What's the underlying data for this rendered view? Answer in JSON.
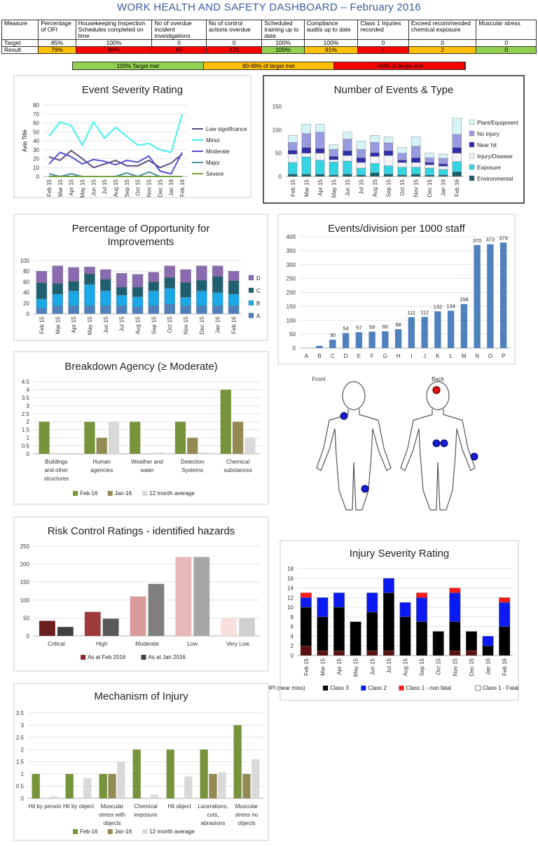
{
  "title": "WORK HEALTH AND SAFETY DASHBOARD – February 2016",
  "table": {
    "header": [
      "Measure",
      "Percentage of OFI",
      "Housekeeping Inspection Schedules completed on time",
      "No of overdue incident investigations",
      "No of control actions overdue",
      "Scheduled training up to date",
      "Compliance audits up to date",
      "Class 1 Injuries recorded",
      "Exceed recommended chemical exposure",
      "Muscular stress"
    ],
    "rows": [
      [
        "Target",
        "85%",
        "100%",
        "0",
        "0",
        "100%",
        "100%",
        "0",
        "0",
        "0"
      ],
      [
        "Result",
        "79%",
        "88%",
        "83",
        "125",
        "100%",
        "91%",
        "1",
        "2",
        "0"
      ]
    ],
    "result_colors": [
      null,
      "#ffc000",
      "#ff0000",
      "#ff0000",
      "#ff0000",
      "#92d050",
      "#ffc000",
      "#ff0000",
      "#ffc000",
      "#92d050"
    ]
  },
  "target_legend": [
    {
      "label": "100% Target met",
      "color": "#92d050"
    },
    {
      "label": "90-99% of target met",
      "color": "#ffc000"
    },
    {
      "label": ">90% of target met",
      "color": "#ff0000"
    }
  ],
  "body_diagram": {
    "front": "Front",
    "back": "Back"
  },
  "chart_data": [
    {
      "type": "line",
      "title": "Event Severity Rating",
      "y_label": "Axis Title",
      "legend": "right",
      "grid": true,
      "categories": [
        "Feb 15",
        "Mar 15",
        "Apr 15",
        "May 15",
        "Jun 15",
        "Jul 15",
        "Aug 15",
        "Sep 15",
        "Oct 15",
        "Nov 15",
        "Dec 15",
        "Jan 16",
        "Feb 16"
      ],
      "ylim": [
        0,
        80
      ],
      "yticks": [
        0,
        10,
        20,
        30,
        40,
        50,
        60,
        70,
        80
      ],
      "series": [
        {
          "name": "Low significance",
          "color": "#5e4b7f",
          "values": [
            22,
            18,
            29,
            20,
            10,
            14,
            18,
            12,
            12,
            18,
            10,
            15,
            25
          ]
        },
        {
          "name": "Minor",
          "color": "#40f0f0",
          "values": [
            45,
            61,
            57,
            35,
            61,
            43,
            55,
            45,
            35,
            37,
            30,
            27,
            70
          ]
        },
        {
          "name": "Moderate",
          "color": "#5650d0",
          "values": [
            14,
            27,
            22,
            14,
            19,
            17,
            13,
            18,
            16,
            23,
            6,
            3,
            27
          ]
        },
        {
          "name": "Major",
          "color": "#4a8fa0",
          "values": [
            3,
            0,
            3,
            0,
            0,
            0,
            0,
            4,
            0,
            5,
            0,
            0,
            0
          ]
        },
        {
          "name": "Severe",
          "color": "#77a040",
          "values": [
            0,
            0,
            0,
            0,
            0,
            0,
            0,
            0,
            0,
            0,
            0,
            0,
            0
          ]
        }
      ]
    },
    {
      "type": "stacked_bar",
      "title": "Number of Events & Type",
      "legend": "right",
      "grid": false,
      "categories": [
        "Feb 15",
        "Mar 15",
        "Apr 15",
        "May 15",
        "Jun 15",
        "Jul 15",
        "Aug 15",
        "Sep 15",
        "Oct 15",
        "Nov 15",
        "Dec 15",
        "Jan 16",
        "Feb 16"
      ],
      "ylim": [
        0,
        150
      ],
      "yticks": [
        0,
        50,
        100,
        150
      ],
      "series": [
        {
          "name": "Environmental",
          "color": "#17606b",
          "values": [
            5,
            5,
            5,
            3,
            5,
            3,
            8,
            5,
            3,
            5,
            3,
            3,
            10
          ]
        },
        {
          "name": "Exposure",
          "color": "#35d4e0",
          "values": [
            25,
            37,
            30,
            28,
            28,
            15,
            20,
            18,
            17,
            15,
            15,
            12,
            22
          ]
        },
        {
          "name": "Injury/Disease",
          "color": "#f2f2f8",
          "values": [
            18,
            8,
            15,
            5,
            12,
            12,
            15,
            22,
            10,
            10,
            7,
            7,
            18
          ]
        },
        {
          "name": "Near hit",
          "color": "#2e2ea8",
          "values": [
            8,
            12,
            10,
            7,
            10,
            10,
            8,
            10,
            5,
            10,
            5,
            5,
            12
          ]
        },
        {
          "name": "No injury",
          "color": "#9a9ae0",
          "values": [
            17,
            30,
            35,
            15,
            25,
            18,
            22,
            17,
            15,
            25,
            10,
            12,
            28
          ]
        },
        {
          "name": "Plant/Equipment",
          "color": "#d4f4f8",
          "values": [
            15,
            20,
            17,
            10,
            15,
            18,
            15,
            13,
            12,
            20,
            10,
            9,
            35
          ]
        }
      ]
    },
    {
      "type": "stacked_bar",
      "title": "Percentage of Opportunity for Improvements",
      "legend": "right",
      "grid": true,
      "categories": [
        "Feb 15",
        "Mar 15",
        "Apr 15",
        "May 15",
        "Jun 15",
        "Jul 15",
        "Aug 15",
        "Sep 15",
        "Oct 15",
        "Nov 15",
        "Dec 15",
        "Jan 16",
        "Feb 16"
      ],
      "ylim": [
        0,
        100
      ],
      "yticks": [
        0,
        20,
        40,
        60,
        80,
        100
      ],
      "series": [
        {
          "name": "A",
          "color": "#4f81bd",
          "values": [
            10,
            15,
            15,
            15,
            15,
            15,
            12,
            15,
            18,
            15,
            15,
            15,
            15
          ]
        },
        {
          "name": "B",
          "color": "#1aa8e8",
          "values": [
            18,
            22,
            28,
            40,
            28,
            20,
            20,
            28,
            30,
            16,
            28,
            25,
            22
          ]
        },
        {
          "name": "C",
          "color": "#1f6070",
          "values": [
            30,
            20,
            18,
            20,
            22,
            15,
            18,
            17,
            20,
            28,
            20,
            30,
            25
          ]
        },
        {
          "name": "D",
          "color": "#8a6ab0",
          "values": [
            22,
            33,
            26,
            13,
            18,
            26,
            24,
            18,
            22,
            24,
            27,
            20,
            18
          ]
        }
      ]
    },
    {
      "type": "bar",
      "title": "Events/division per 1000 staff",
      "grid": true,
      "color": "#4f81bd",
      "categories": [
        "A",
        "B",
        "C",
        "D",
        "E",
        "F",
        "G",
        "H",
        "I",
        "J",
        "K",
        "L",
        "M",
        "N",
        "O",
        "P"
      ],
      "values": [
        0,
        8,
        30,
        54,
        57,
        59,
        60,
        68,
        111,
        112,
        132,
        134,
        158,
        370,
        373,
        379
      ],
      "value_labels": [
        null,
        null,
        "30",
        "54",
        "57",
        "59",
        "60",
        "68",
        "111",
        "112",
        "132",
        "134",
        "158",
        "370",
        "373",
        "379"
      ],
      "ylim": [
        0,
        400
      ],
      "yticks": [
        0,
        50,
        100,
        150,
        200,
        250,
        300,
        350,
        400
      ]
    },
    {
      "type": "grouped_bar",
      "title": "Breakdown Agency (≥ Moderate)",
      "legend": "bottom",
      "grid": true,
      "categories": [
        "Buildings and other structures",
        "Human agencies",
        "Weather and water",
        "Detection Systems",
        "Chemical substances"
      ],
      "ylim": [
        0,
        4.5
      ],
      "yticks": [
        0,
        0.5,
        1,
        1.5,
        2,
        2.5,
        3,
        3.5,
        4,
        4.5
      ],
      "series": [
        {
          "name": "Feb-16",
          "color": "#77933c",
          "values": [
            2,
            2,
            2,
            2,
            4
          ]
        },
        {
          "name": "Jan-16",
          "color": "#948a54",
          "values": [
            0,
            1,
            0,
            1,
            2
          ]
        },
        {
          "name": "12 month average",
          "color": "#d9d9d9",
          "values": [
            0,
            2,
            0.08,
            0.08,
            1
          ]
        }
      ]
    },
    {
      "type": "grouped_bar",
      "title": "Risk Control Ratings - identified hazards",
      "legend": "bottom",
      "grid": true,
      "categories": [
        "Critical",
        "High",
        "Moderate",
        "Low",
        "Very Low"
      ],
      "ylim": [
        0,
        250
      ],
      "yticks": [
        0,
        50,
        100,
        150,
        200,
        250
      ],
      "series": [
        {
          "name": "As at Feb 2016",
          "color": "#8b2b2b",
          "colors": [
            "#6b2020",
            "#9e3a3a",
            "#d89a9a",
            "#e8b8b8",
            "#f8e0e0"
          ],
          "values": [
            42,
            67,
            110,
            220,
            50
          ]
        },
        {
          "name": "As at Jan 2016",
          "color": "#404040",
          "colors": [
            "#404040",
            "#595959",
            "#7f7f7f",
            "#a6a6a6",
            "#d0d0d0"
          ],
          "values": [
            25,
            48,
            145,
            220,
            50
          ]
        }
      ]
    },
    {
      "type": "stacked_bar",
      "title": "Injury Severity Rating",
      "legend": "bottom",
      "grid": true,
      "categories": [
        "Feb 15",
        "Mar 15",
        "Apr 15",
        "May 15",
        "Jun 15",
        "Jul 15",
        "Aug 15",
        "Sep 15",
        "Oct 15",
        "Nov 15",
        "Dec 15",
        "Jan 16",
        "Feb 16"
      ],
      "ylim": [
        0,
        18
      ],
      "yticks": [
        0,
        2,
        4,
        6,
        8,
        10,
        12,
        14,
        16,
        18
      ],
      "series": [
        {
          "name": "HPI (near miss)",
          "color": "#5a1010",
          "values": [
            2,
            1,
            1,
            0,
            1,
            1,
            0,
            0,
            0,
            1,
            1,
            0,
            0
          ]
        },
        {
          "name": "Class 3",
          "color": "#000000",
          "values": [
            8,
            7,
            9,
            7,
            8,
            12,
            8,
            7,
            5,
            6,
            4,
            2,
            6
          ]
        },
        {
          "name": "Class 2",
          "color": "#0a1af0",
          "values": [
            2,
            4,
            3,
            0,
            4,
            3,
            3,
            5,
            0,
            6,
            0,
            2,
            5
          ]
        },
        {
          "name": "Class 1 - non fatal",
          "color": "#ff1a1a",
          "values": [
            1,
            0,
            0,
            0,
            0,
            0,
            0,
            1,
            0,
            1,
            0,
            0,
            1
          ]
        },
        {
          "name": "Class 1 - Fatal",
          "color": "#ffffff",
          "values": [
            0,
            0,
            0,
            0,
            0,
            0,
            0,
            0,
            0,
            0,
            0,
            0,
            0
          ]
        }
      ]
    },
    {
      "type": "grouped_bar",
      "title": "Mechanism of Injury",
      "legend": "bottom",
      "grid": true,
      "categories": [
        "Hit by person",
        "Hit by object",
        "Muscular stress with objects",
        "Chemical exposure",
        "Hit object",
        "Lacerations, cuts, abrasions",
        "Muscular stress no objects"
      ],
      "ylim": [
        0,
        3.5
      ],
      "yticks": [
        0,
        0.5,
        1,
        1.5,
        2,
        2.5,
        3,
        3.5
      ],
      "series": [
        {
          "name": "Feb-16",
          "color": "#77933c",
          "values": [
            1,
            1,
            1,
            2,
            2,
            2,
            3
          ]
        },
        {
          "name": "Jan-16",
          "color": "#948a54",
          "values": [
            0,
            0,
            1,
            0,
            0,
            1,
            1
          ]
        },
        {
          "name": "12 month average",
          "color": "#d9d9d9",
          "values": [
            0.08,
            0.83,
            1.5,
            0.15,
            0.9,
            1.07,
            1.6
          ]
        }
      ]
    }
  ]
}
